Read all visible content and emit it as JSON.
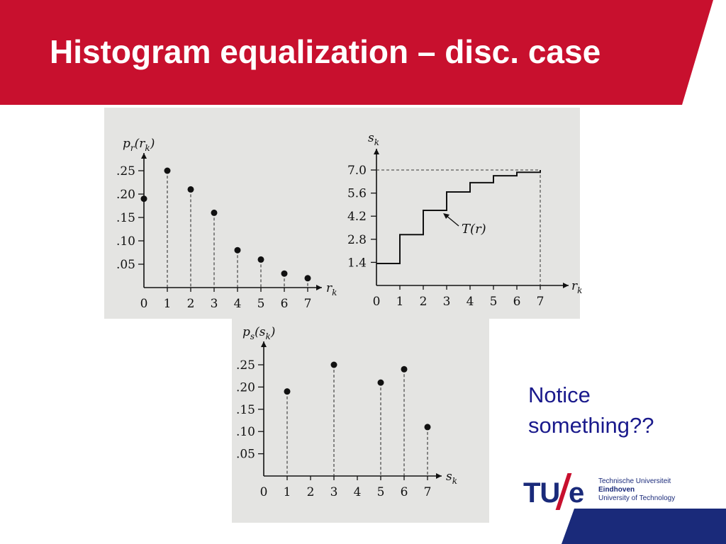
{
  "slide": {
    "title": "Histogram equalization – disc. case",
    "notice_line1": "Notice",
    "notice_line2": "something??"
  },
  "colors": {
    "header_red": "#c8102e",
    "footer_blue": "#1a2a7a",
    "notice_text": "#1a1a8c"
  },
  "logo": {
    "mark": "TU",
    "e": "e",
    "line1": "Technische Universiteit",
    "line2": "Eindhoven",
    "line3": "University of Technology"
  },
  "chart_data": [
    {
      "type": "scatter",
      "title": "",
      "ylabel": "pr(rk)",
      "xlabel": "rk",
      "x": [
        0,
        1,
        2,
        3,
        4,
        5,
        6,
        7
      ],
      "values": [
        0.19,
        0.25,
        0.21,
        0.16,
        0.08,
        0.06,
        0.03,
        0.02
      ],
      "xticks": [
        "0",
        "1",
        "2",
        "3",
        "4",
        "5",
        "6",
        "7"
      ],
      "yticks": [
        ".05",
        ".10",
        ".15",
        ".20",
        ".25"
      ],
      "xlim": [
        0,
        7
      ],
      "ylim": [
        0,
        0.25
      ]
    },
    {
      "type": "line",
      "title": "",
      "ylabel": "sk",
      "xlabel": "rk",
      "annotation": "T(r)",
      "x": [
        0,
        1,
        2,
        3,
        4,
        5,
        6,
        7
      ],
      "values": [
        1.33,
        3.08,
        4.55,
        5.67,
        6.23,
        6.65,
        6.86,
        7.0
      ],
      "xticks": [
        "0",
        "1",
        "2",
        "3",
        "4",
        "5",
        "6",
        "7"
      ],
      "yticks": [
        "1.4",
        "2.8",
        "4.2",
        "5.6",
        "7.0"
      ],
      "xlim": [
        0,
        7
      ],
      "ylim": [
        0,
        7
      ]
    },
    {
      "type": "scatter",
      "title": "",
      "ylabel": "ps(sk)",
      "xlabel": "sk",
      "x": [
        1,
        3,
        5,
        6,
        7
      ],
      "values": [
        0.19,
        0.25,
        0.21,
        0.24,
        0.11
      ],
      "xticks": [
        "0",
        "1",
        "2",
        "3",
        "4",
        "5",
        "6",
        "7"
      ],
      "yticks": [
        ".05",
        ".10",
        ".15",
        ".20",
        ".25"
      ],
      "xlim": [
        0,
        7
      ],
      "ylim": [
        0,
        0.25
      ]
    }
  ]
}
